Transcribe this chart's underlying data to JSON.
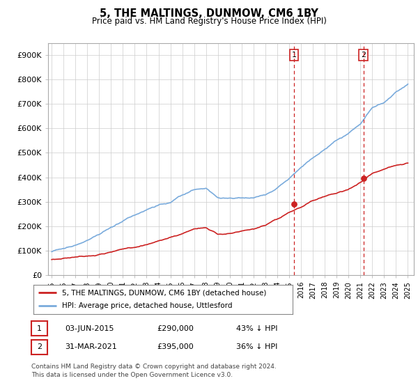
{
  "title": "5, THE MALTINGS, DUNMOW, CM6 1BY",
  "subtitle": "Price paid vs. HM Land Registry's House Price Index (HPI)",
  "ylabel_ticks": [
    "£0",
    "£100K",
    "£200K",
    "£300K",
    "£400K",
    "£500K",
    "£600K",
    "£700K",
    "£800K",
    "£900K"
  ],
  "ytick_values": [
    0,
    100000,
    200000,
    300000,
    400000,
    500000,
    600000,
    700000,
    800000,
    900000
  ],
  "ylim": [
    0,
    950000
  ],
  "xlim_min": 1994.7,
  "xlim_max": 2025.5,
  "sale1_date_x": 2015.42,
  "sale1_price": 290000,
  "sale2_date_x": 2021.25,
  "sale2_price": 395000,
  "sale1_label": "1",
  "sale2_label": "2",
  "sale1_text": "03-JUN-2015",
  "sale1_amount": "£290,000",
  "sale1_pct": "43% ↓ HPI",
  "sale2_text": "31-MAR-2021",
  "sale2_amount": "£395,000",
  "sale2_pct": "36% ↓ HPI",
  "legend_line1": "5, THE MALTINGS, DUNMOW, CM6 1BY (detached house)",
  "legend_line2": "HPI: Average price, detached house, Uttlesford",
  "footer": "Contains HM Land Registry data © Crown copyright and database right 2024.\nThis data is licensed under the Open Government Licence v3.0.",
  "hpi_color": "#7aabdc",
  "price_color": "#cc2222",
  "vline_color": "#cc2222",
  "background_color": "#ffffff",
  "plot_bg_color": "#ffffff",
  "grid_color": "#cccccc",
  "hpi_keypoints_x": [
    1995,
    1996,
    1997,
    1998,
    1999,
    2000,
    2001,
    2002,
    2003,
    2004,
    2005,
    2006,
    2007,
    2008,
    2009,
    2010,
    2011,
    2012,
    2013,
    2014,
    2015,
    2016,
    2017,
    2018,
    2019,
    2020,
    2021,
    2022,
    2023,
    2024,
    2025
  ],
  "hpi_keypoints_y": [
    95000,
    108000,
    122000,
    140000,
    162000,
    188000,
    215000,
    238000,
    258000,
    278000,
    295000,
    318000,
    340000,
    345000,
    308000,
    305000,
    308000,
    310000,
    325000,
    355000,
    390000,
    435000,
    480000,
    510000,
    545000,
    575000,
    615000,
    680000,
    700000,
    740000,
    770000
  ],
  "price_keypoints_x": [
    1995,
    1996,
    1997,
    1998,
    1999,
    2000,
    2001,
    2002,
    2003,
    2004,
    2005,
    2006,
    2007,
    2008,
    2009,
    2010,
    2011,
    2012,
    2013,
    2014,
    2015,
    2016,
    2017,
    2018,
    2019,
    2020,
    2021,
    2022,
    2023,
    2024,
    2025
  ],
  "price_keypoints_y": [
    62000,
    68000,
    75000,
    82000,
    90000,
    100000,
    110000,
    120000,
    130000,
    145000,
    160000,
    175000,
    195000,
    200000,
    175000,
    178000,
    185000,
    192000,
    205000,
    225000,
    250000,
    270000,
    295000,
    315000,
    330000,
    345000,
    375000,
    415000,
    430000,
    450000,
    460000
  ]
}
